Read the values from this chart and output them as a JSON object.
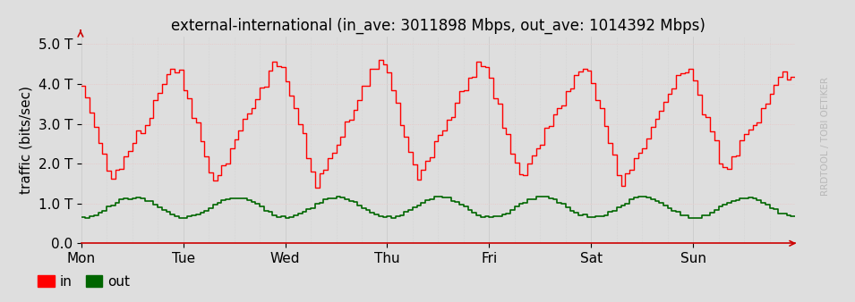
{
  "title": "external-international (in_ave: 3011898 Mbps, out_ave: 1014392 Mbps)",
  "ylabel": "traffic (bits/sec)",
  "background_color": "#dedede",
  "plot_bg_color": "#dedede",
  "grid_color": "#ffffff",
  "grid_minor_color": "#eeeeee",
  "in_color": "#ff0000",
  "out_color": "#006600",
  "ytick_labels": [
    "0.0",
    "1.0 T",
    "2.0 T",
    "3.0 T",
    "4.0 T",
    "5.0 T"
  ],
  "ytick_values": [
    0,
    1000000000000,
    2000000000000,
    3000000000000,
    4000000000000,
    5000000000000
  ],
  "day_labels": [
    "Mon",
    "Tue",
    "Wed",
    "Thu",
    "Fri",
    "Sat",
    "Sun"
  ],
  "watermark": "RRDTOOL / TOBI OETIKER",
  "legend_in": "in",
  "legend_out": "out",
  "title_fontsize": 12,
  "axis_fontsize": 11,
  "tick_fontsize": 11,
  "ymax": 5200000000000,
  "n_days": 7
}
